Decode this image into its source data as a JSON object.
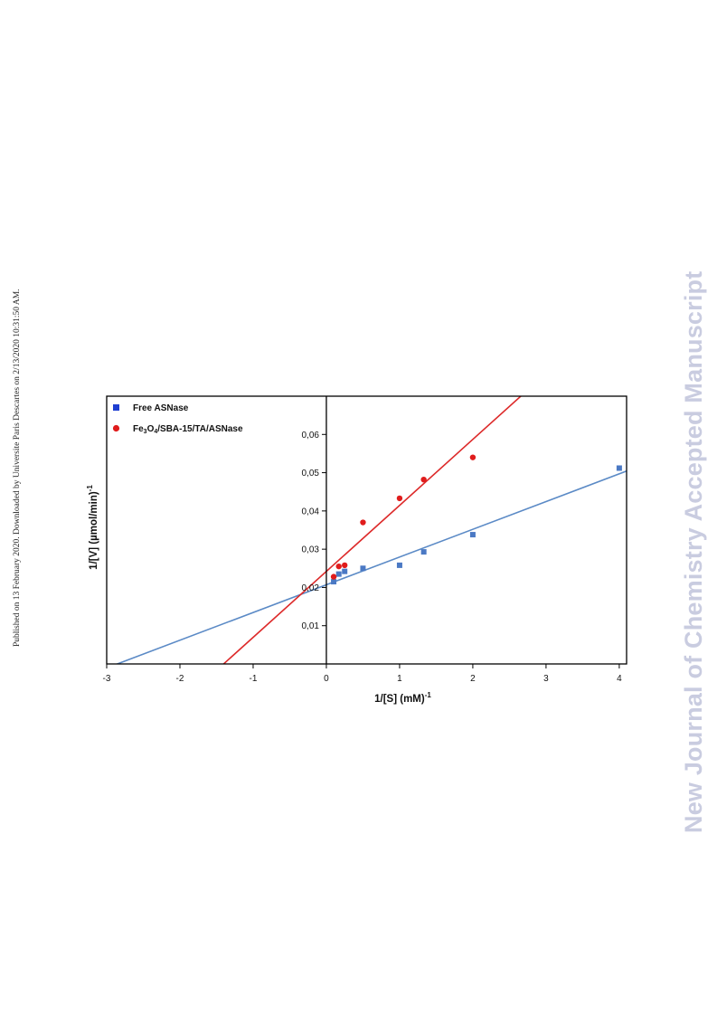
{
  "side_note": "Published on 13 February 2020. Downloaded by Universite Paris Descartes on 2/13/2020 10:31:50 AM.",
  "watermark": "New Journal of Chemistry Accepted Manuscript",
  "chart_data": {
    "type": "scatter",
    "title": "",
    "xlabel": "1/[S] (mM)",
    "xlabel_sup": "-1",
    "ylabel": "1/[V] (µmol/min)",
    "ylabel_sup": "-1",
    "xlim": [
      -3,
      4.1
    ],
    "ylim": [
      0,
      0.07
    ],
    "xticks": [
      -3,
      -2,
      -1,
      0,
      1,
      2,
      3,
      4
    ],
    "xtick_labels": [
      "-3",
      "-2",
      "-1",
      "0",
      "1",
      "2",
      "3",
      "4"
    ],
    "yticks": [
      0.01,
      0.02,
      0.03,
      0.04,
      0.05,
      0.06
    ],
    "ytick_labels": [
      "0,01",
      "0,02",
      "0,03",
      "0,04",
      "0,05",
      "0,06"
    ],
    "grid": false,
    "legend": "top-left",
    "series": [
      {
        "name": "Free ASNase",
        "marker": "square",
        "color": "#1f3fd1",
        "point_color": "#4b79c4",
        "line_color": "#5b8ac6",
        "x": [
          0.1,
          0.17,
          0.25,
          0.5,
          1.0,
          1.33,
          2.0,
          4.0
        ],
        "y": [
          0.0215,
          0.0235,
          0.0242,
          0.025,
          0.0258,
          0.0293,
          0.0338,
          0.0512
        ],
        "fit": {
          "slope": 0.00725,
          "intercept": 0.0207
        }
      },
      {
        "name_parts": [
          "Fe",
          "3",
          "O",
          "4",
          "/SBA-15/TA/ASNase"
        ],
        "marker": "circle",
        "color": "#e01c1c",
        "point_color": "#e01c1c",
        "line_color": "#dd2a2a",
        "x": [
          0.1,
          0.17,
          0.25,
          0.5,
          1.0,
          1.33,
          2.0
        ],
        "y": [
          0.0228,
          0.0255,
          0.0258,
          0.037,
          0.0433,
          0.0482,
          0.054
        ],
        "fit": {
          "slope": 0.01725,
          "intercept": 0.0242
        }
      }
    ]
  }
}
